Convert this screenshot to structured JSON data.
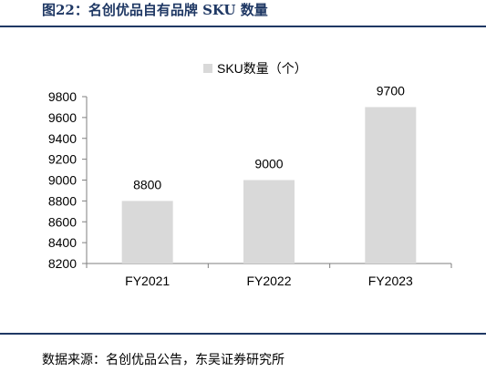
{
  "figure_title": "图22：名创优品自有品牌 SKU 数量",
  "source_note": "数据来源：名创优品公告，东吴证券研究所",
  "colors": {
    "title": "#1f3864",
    "bar": "#d9d9d9",
    "axis": "#7f7f7f"
  },
  "chart_data": {
    "type": "bar",
    "categories": [
      "FY2021",
      "FY2022",
      "FY2023"
    ],
    "series": [
      {
        "name": "SKU数量（个）",
        "values": [
          8800,
          9000,
          9700
        ]
      }
    ],
    "data_labels": [
      "8800",
      "9000",
      "9700"
    ],
    "ylim": [
      8200,
      9800
    ],
    "yticks": [
      8200,
      8400,
      8600,
      8800,
      9000,
      9200,
      9400,
      9600,
      9800
    ],
    "title": "",
    "xlabel": "",
    "ylabel": "",
    "legend_position": "top-center",
    "grid": false
  }
}
